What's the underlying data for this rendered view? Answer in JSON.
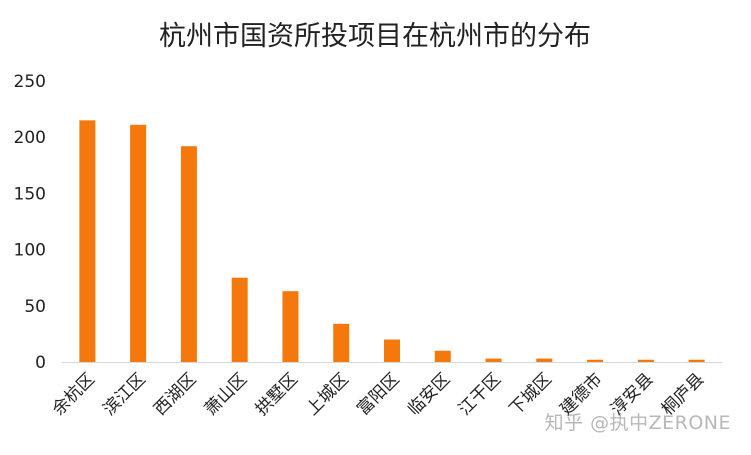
{
  "chart_data": {
    "type": "bar",
    "title": "杭州市国资所投项目在杭州市的分布",
    "categories": [
      "余杭区",
      "滨江区",
      "西湖区",
      "萧山区",
      "拱墅区",
      "上城区",
      "富阳区",
      "临安区",
      "江干区",
      "下城区",
      "建德市",
      "淳安县",
      "桐庐县"
    ],
    "values": [
      215,
      211,
      192,
      75,
      63,
      34,
      20,
      10,
      3,
      3,
      2,
      2,
      2
    ],
    "ylim": [
      0,
      250
    ],
    "yticks": [
      0,
      50,
      100,
      150,
      200,
      250
    ],
    "xlabel": "",
    "ylabel": "",
    "grid": false,
    "bar_color": "#F4780B"
  },
  "watermark": "知乎 @执中ZERONE"
}
